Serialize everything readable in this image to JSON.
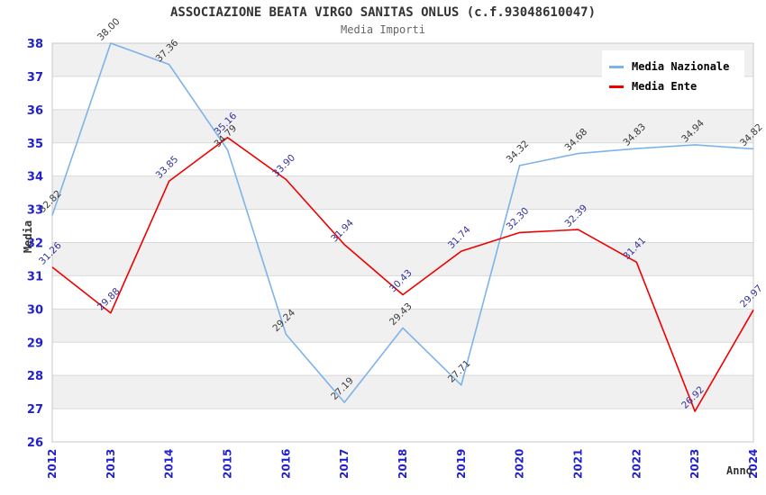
{
  "chart_data": {
    "type": "line",
    "title": "ASSOCIAZIONE BEATA VIRGO SANITAS ONLUS (c.f.93048610047)",
    "subtitle": "Media Importi",
    "xlabel": "Anno",
    "ylabel": "Media",
    "x": [
      2012,
      2013,
      2014,
      2015,
      2016,
      2017,
      2018,
      2019,
      2020,
      2021,
      2022,
      2023,
      2024
    ],
    "series": [
      {
        "name": "Media Nazionale",
        "color": "#7eb3ea",
        "label_color": "#3a3a3a",
        "values": [
          32.82,
          38.0,
          37.36,
          34.79,
          29.24,
          27.19,
          29.43,
          27.71,
          34.32,
          34.68,
          34.83,
          34.94,
          34.82
        ]
      },
      {
        "name": "Media Ente",
        "color": "#ee0000",
        "label_color": "#333399",
        "values": [
          31.26,
          29.88,
          33.85,
          35.16,
          33.9,
          31.94,
          30.43,
          31.74,
          32.3,
          32.39,
          31.41,
          26.92,
          29.97
        ]
      }
    ],
    "ylim": [
      26,
      38
    ],
    "ytick_step": 1,
    "grid": "horizontal gridlines with alternating gray bands",
    "band_color": "#f0f0f0",
    "gridline_color": "#d9d9d9",
    "border_color": "#c9c9c9",
    "axis_tick_color": "#2222cc",
    "legend_position": "top-right",
    "legend_labels": [
      "Media Nazionale",
      "Media Ente"
    ]
  }
}
